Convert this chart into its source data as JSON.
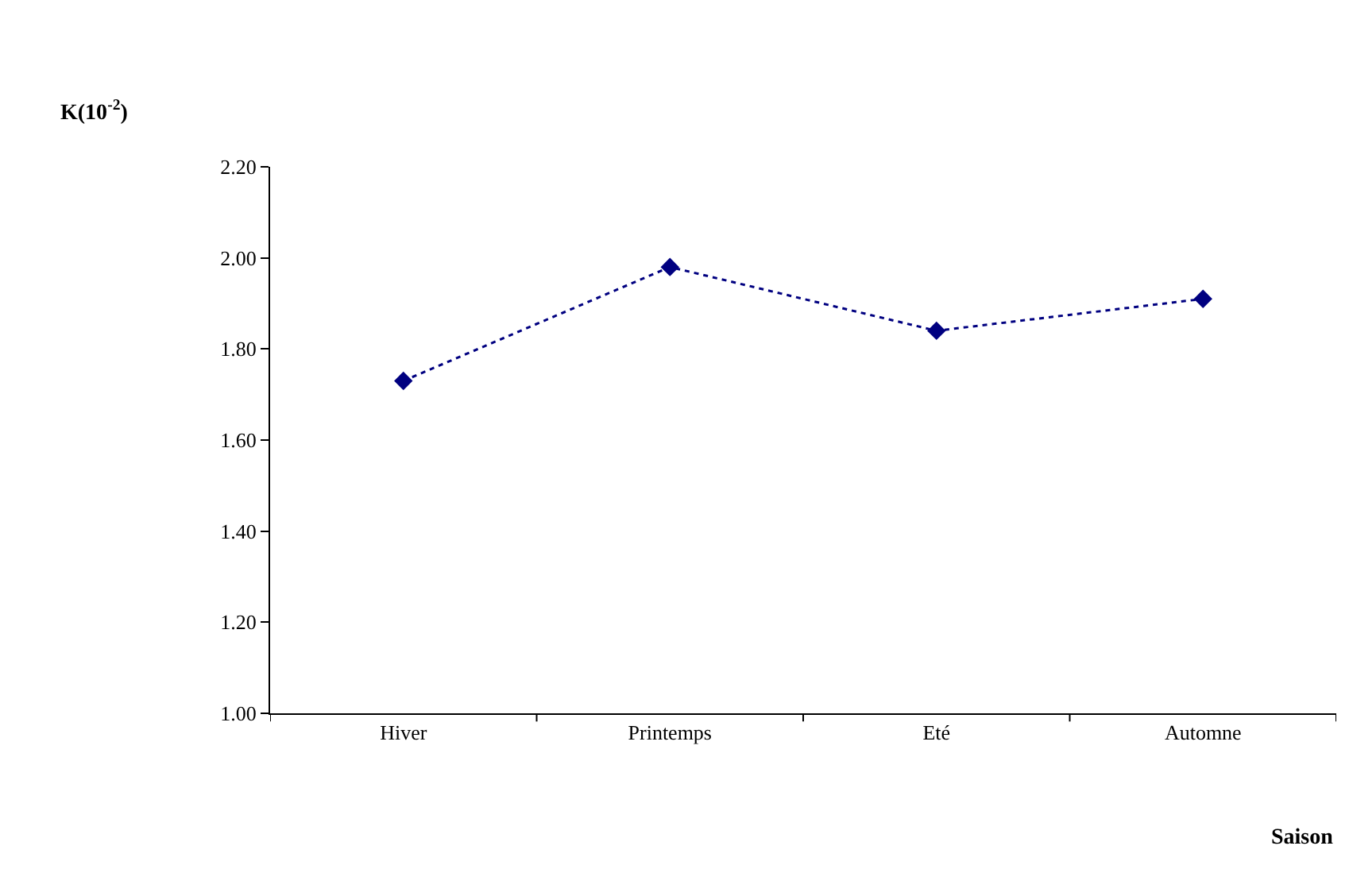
{
  "chart_data": {
    "type": "line",
    "xlabel": "Saison",
    "ylabel": "K(10$^{-2}$)",
    "categories": [
      "Hiver",
      "Printemps",
      "Eté",
      "Automne"
    ],
    "series": [
      {
        "color": "#000080",
        "values": [
          1.73,
          1.98,
          1.84,
          1.91
        ]
      }
    ],
    "ylim": [
      1.0,
      2.2
    ],
    "yticks": [
      {
        "value": 1.0,
        "label": "1.00"
      },
      {
        "value": 1.2,
        "label": "1.20"
      },
      {
        "value": 1.4,
        "label": "1.40"
      },
      {
        "value": 1.6,
        "label": "1.60"
      },
      {
        "value": 1.8,
        "label": "1.80"
      },
      {
        "value": 2.0,
        "label": "2.00"
      },
      {
        "value": 2.2,
        "label": "2.20"
      }
    ],
    "marker": "diamond",
    "line_style": "dotted"
  }
}
